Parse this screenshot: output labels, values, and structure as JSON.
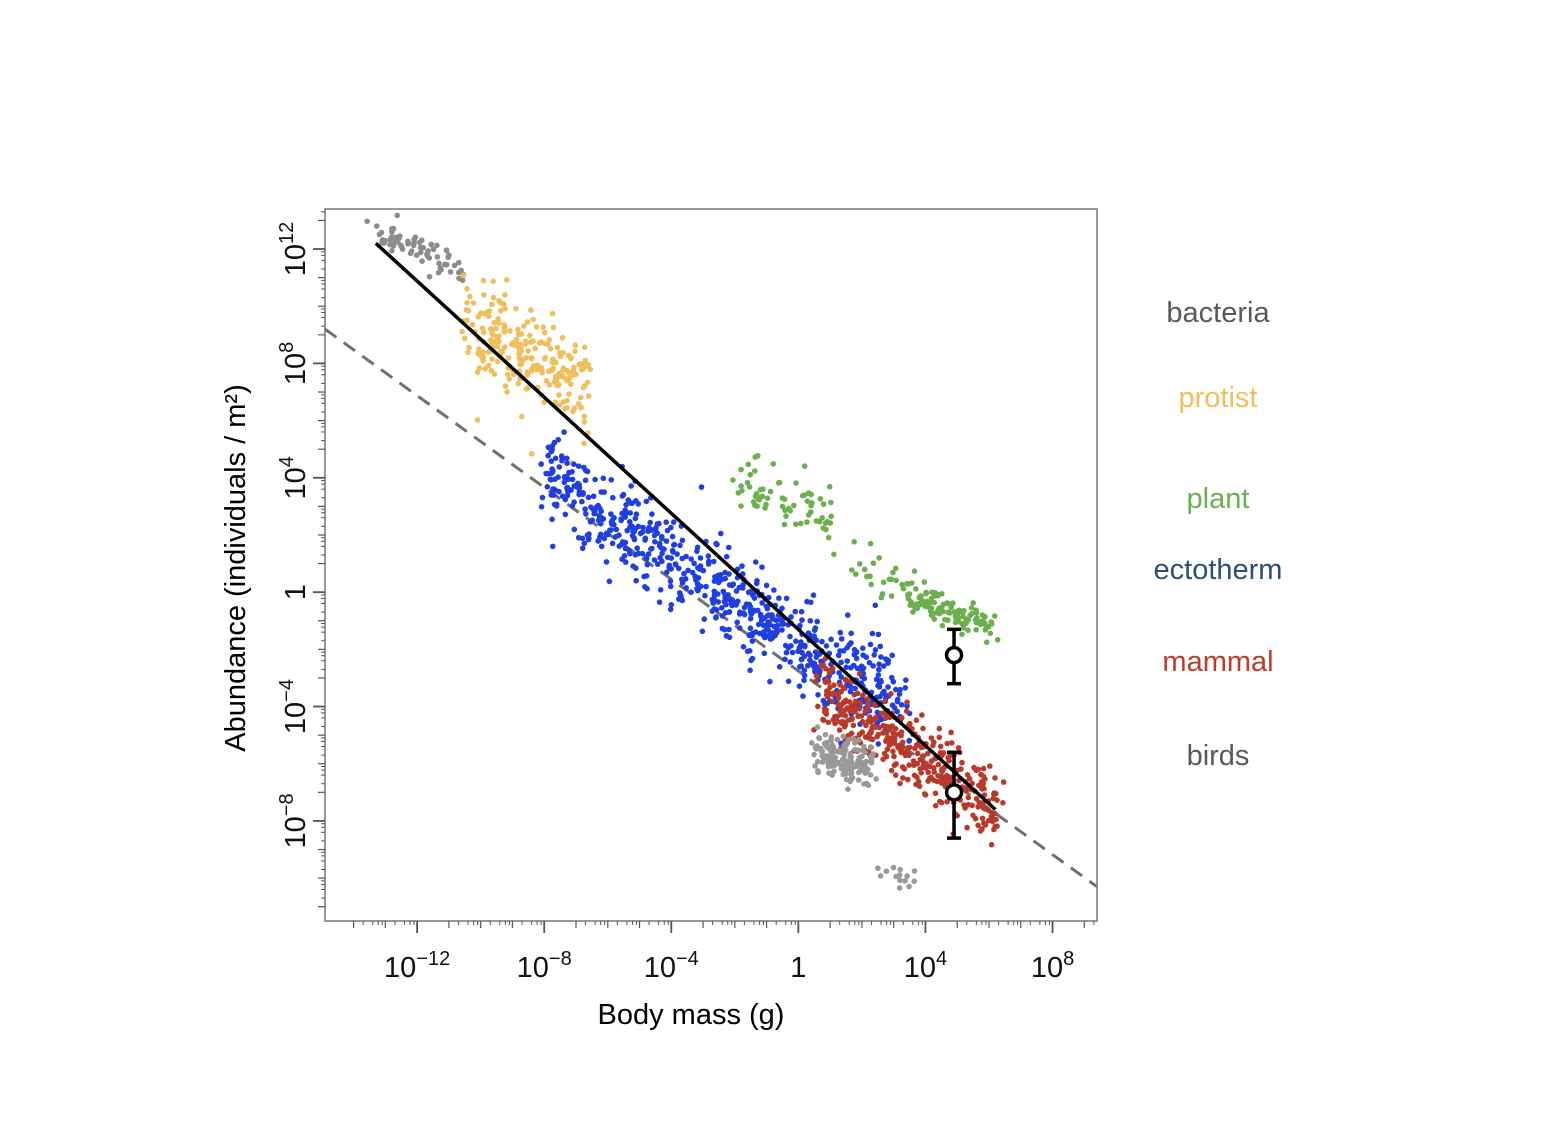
{
  "chart_data": {
    "type": "scatter",
    "xlabel": "Body mass (g)",
    "ylabel": "Abundance (individuals / m²)",
    "x_scale": "log10",
    "y_scale": "log10",
    "xlim_log10": [
      -14.9,
      9.4
    ],
    "ylim_log10": [
      -11.5,
      13.4
    ],
    "x_ticks": [
      {
        "log10": -12,
        "base": "10",
        "exp": "−12"
      },
      {
        "log10": -8,
        "base": "10",
        "exp": "−8"
      },
      {
        "log10": -4,
        "base": "10",
        "exp": "−4"
      },
      {
        "log10": 0,
        "base": "1",
        "exp": ""
      },
      {
        "log10": 4,
        "base": "10",
        "exp": "4"
      },
      {
        "log10": 8,
        "base": "10",
        "exp": "8"
      }
    ],
    "y_ticks": [
      {
        "log10": 12,
        "base": "10",
        "exp": "12"
      },
      {
        "log10": 8,
        "base": "10",
        "exp": "8"
      },
      {
        "log10": 4,
        "base": "10",
        "exp": "4"
      },
      {
        "log10": 0,
        "base": "1",
        "exp": ""
      },
      {
        "log10": -4,
        "base": "10",
        "exp": "−4"
      },
      {
        "log10": -8,
        "base": "10",
        "exp": "−8"
      }
    ],
    "grid": false,
    "legend_position": "right",
    "series": [
      {
        "name": "bacteria",
        "color": "#8c8c8c",
        "label_color": "#595959",
        "clusters": [
          {
            "x_log10_range": [
              -13.3,
              -10.5
            ],
            "y_log10_center_at_start": 12.6,
            "slope": -0.47,
            "spread": 0.3,
            "count": 75
          }
        ]
      },
      {
        "name": "protist",
        "color": "#f0be5a",
        "label_color": "#f0be5a",
        "clusters": [
          {
            "x_log10_range": [
              -10.5,
              -6.7
            ],
            "y_log10_center_at_start": 9.5,
            "slope": -0.62,
            "spread": 0.8,
            "count": 240
          }
        ]
      },
      {
        "name": "plant",
        "color": "#6ab04c",
        "label_color": "#6ab04c",
        "clusters": [
          {
            "x_log10_range": [
              -2.2,
              1.2
            ],
            "y_log10_center_at_start": 4.0,
            "slope": -0.47,
            "spread": 0.55,
            "count": 70
          },
          {
            "x_log10_range": [
              1.5,
              3.5
            ],
            "y_log10_center_at_start": 1.2,
            "slope": -0.5,
            "spread": 0.5,
            "count": 25
          },
          {
            "x_log10_range": [
              3.5,
              6.2
            ],
            "y_log10_center_at_start": -0.1,
            "slope": -0.45,
            "spread": 0.3,
            "count": 110
          }
        ]
      },
      {
        "name": "ectotherm",
        "color": "#1f3fe0",
        "label_color": "#2d4f7c",
        "clusters": [
          {
            "x_log10_range": [
              -8.0,
              3.4
            ],
            "y_log10_center_at_start": 4.2,
            "slope": -0.74,
            "spread": 0.8,
            "count": 700
          }
        ]
      },
      {
        "name": "mammal",
        "color": "#b83a2a",
        "label_color": "#c0392b",
        "clusters": [
          {
            "x_log10_range": [
              0.6,
              6.3
            ],
            "y_log10_center_at_start": -3.6,
            "slope": -0.68,
            "spread": 0.65,
            "count": 380
          }
        ]
      },
      {
        "name": "birds",
        "color": "#999999",
        "label_color": "#595959",
        "clusters": [
          {
            "x_log10_range": [
              0.5,
              2.3
            ],
            "y_log10_center_at_start": -5.5,
            "slope": -0.3,
            "spread": 0.4,
            "count": 160
          },
          {
            "x_log10_range": [
              2.2,
              3.7
            ],
            "y_log10_center_at_start": -9.6,
            "slope": -0.2,
            "spread": 0.25,
            "count": 14
          }
        ]
      }
    ],
    "fit_lines": [
      {
        "style": "solid",
        "color": "#000000",
        "x_log10": [
          -13.3,
          6.2
        ],
        "y_log10": [
          12.2,
          -7.6
        ]
      },
      {
        "style": "dashed",
        "color": "#707070",
        "x_log10": [
          -14.9,
          9.4
        ],
        "y_log10": [
          9.2,
          -10.3
        ]
      }
    ],
    "error_points": [
      {
        "x_log10": 4.9,
        "y_log10": -2.2,
        "y_low_log10": -3.2,
        "y_high_log10": -1.3
      },
      {
        "x_log10": 4.9,
        "y_log10": -7.0,
        "y_low_log10": -8.6,
        "y_high_log10": -5.6
      }
    ]
  },
  "colors": {
    "axis": "#555555",
    "frame": "#777777"
  }
}
